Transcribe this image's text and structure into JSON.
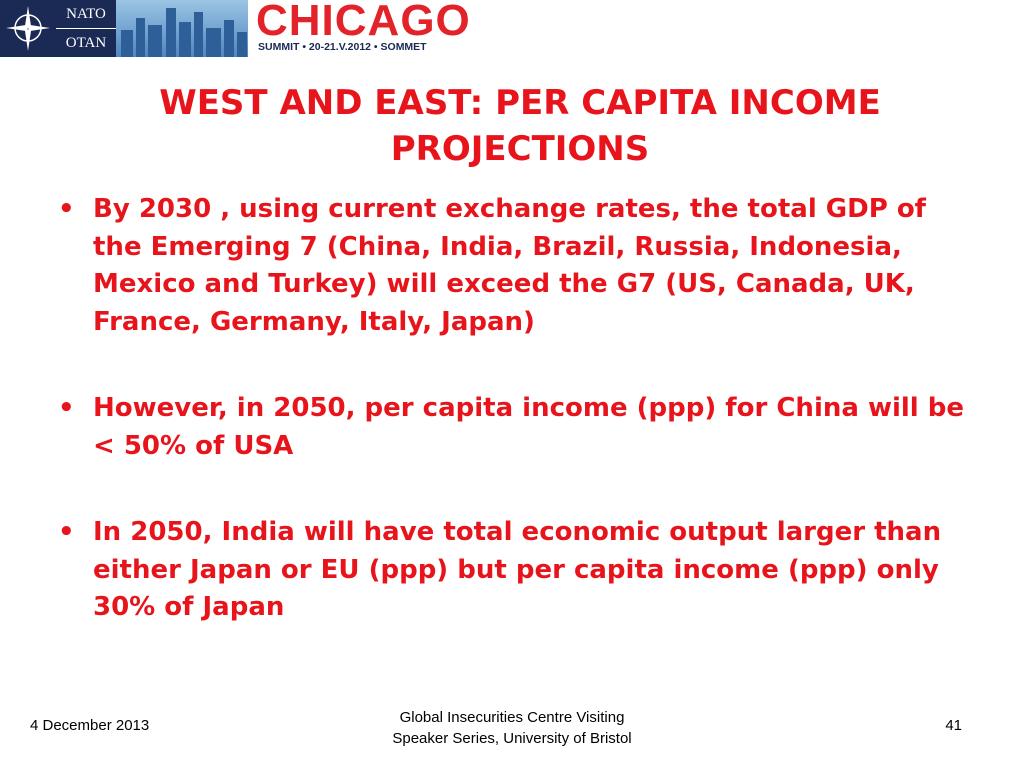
{
  "header": {
    "logo": {
      "top": "NATO",
      "bottom": "OTAN"
    },
    "city": "CHICAGO",
    "tagline": "SUMMIT • 20-21.V.2012 • SOMMET"
  },
  "title": "WEST AND EAST: PER CAPITA INCOME PROJECTIONS",
  "bullets": [
    "By 2030 , using current exchange rates, the total GDP of the Emerging 7 (China, India, Brazil, Russia, Indonesia, Mexico and Turkey) will exceed the G7 (US, Canada, UK, France, Germany, Italy, Japan)",
    "However, in 2050, per capita income (ppp) for China will be < 50% of USA",
    "In 2050, India will have total economic output larger than either Japan or EU (ppp) but per capita income (ppp) only 30% of Japan"
  ],
  "footer": {
    "date": "4 December 2013",
    "center": [
      "Global Insecurities Centre Visiting",
      "Speaker Series, University of Bristol"
    ],
    "page": "41"
  }
}
